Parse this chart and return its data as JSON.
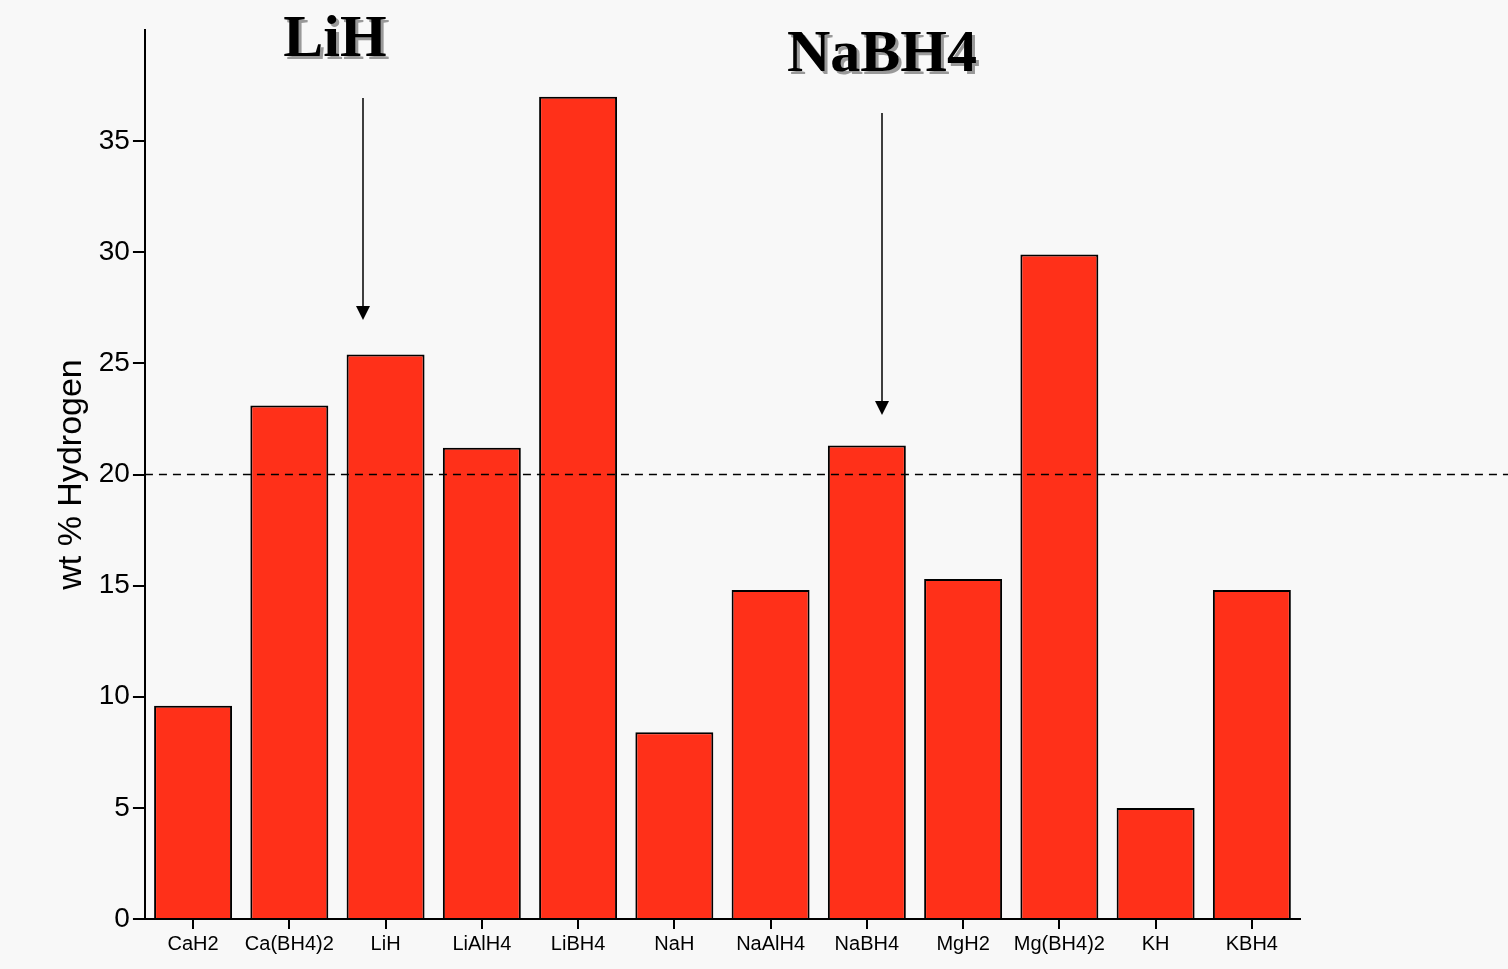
{
  "chart_data": {
    "type": "bar",
    "ylabel": "wt % Hydrogen",
    "categories": [
      "CaH2",
      "Ca(BH4)2",
      "LiH",
      "LiAlH4",
      "LiBH4",
      "NaH",
      "NaAlH4",
      "NaBH4",
      "MgH2",
      "Mg(BH4)2",
      "KH",
      "KBH4"
    ],
    "values": [
      9.6,
      23.1,
      25.4,
      21.2,
      37.0,
      8.4,
      14.8,
      21.3,
      15.3,
      29.9,
      5.0,
      14.8
    ],
    "color": "#ff3019",
    "ylim": [
      0,
      40
    ],
    "yticks": [
      0,
      5,
      10,
      15,
      20,
      25,
      30,
      35
    ],
    "grid": false,
    "legend": false,
    "ref_lines": [
      {
        "axis": "y",
        "value": 20,
        "line_style": "dashed",
        "color": "#000000"
      }
    ],
    "annotations": [
      "LiH",
      "NaBH4"
    ]
  }
}
